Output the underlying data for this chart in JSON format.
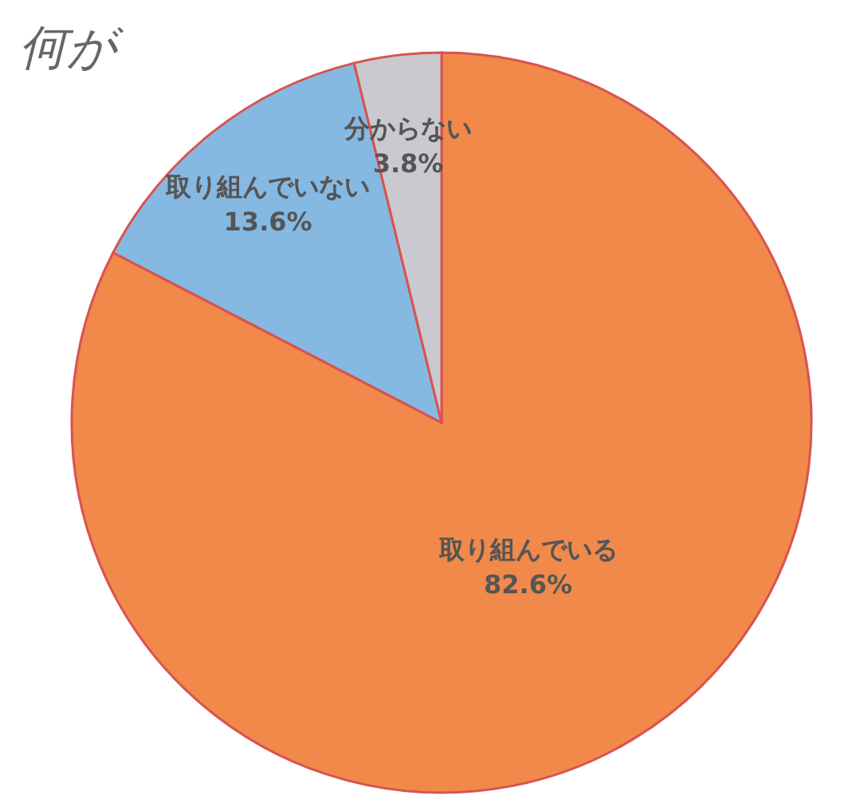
{
  "chart_data": {
    "type": "pie",
    "categories": [
      "取り組んでいる",
      "取り組んでいない",
      "分からない"
    ],
    "values": [
      82.6,
      13.6,
      3.8
    ],
    "colors": [
      "#f0894a",
      "#86b9e2",
      "#c9c9cf"
    ],
    "value_labels": [
      "82.6%",
      "13.6%",
      "3.8%"
    ],
    "annotations": [
      "何が"
    ],
    "legend": false
  }
}
